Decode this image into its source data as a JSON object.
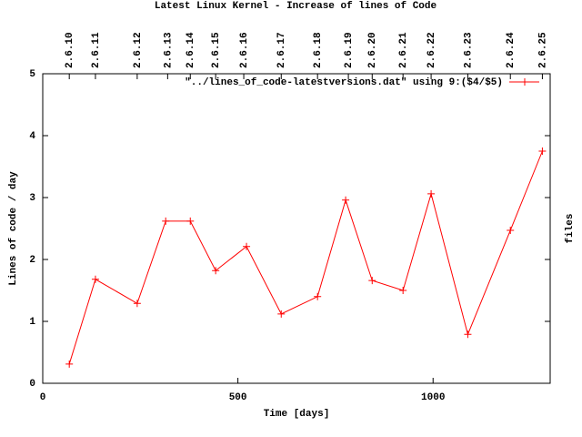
{
  "chart_data": {
    "type": "line",
    "title": "Latest Linux Kernel - Increase of lines of Code",
    "xlabel": "Time [days]",
    "ylabel": "Lines of code / day",
    "y2label": "files",
    "x": [
      68,
      135,
      242,
      315,
      378,
      443,
      522,
      611,
      704,
      776,
      844,
      923,
      995,
      1089,
      1198,
      1280
    ],
    "series": [
      {
        "name": "\"../lines_of_code-latestversions.dat\" using 9:($4/$5)",
        "color": "#ff0000",
        "values": [
          0.31,
          1.68,
          1.29,
          2.62,
          2.62,
          1.82,
          2.21,
          1.12,
          1.4,
          2.96,
          1.66,
          1.5,
          3.06,
          0.79,
          2.47,
          3.75
        ]
      }
    ],
    "xlim": [
      0,
      1300
    ],
    "ylim": [
      0,
      5
    ],
    "xticks": [
      0,
      500,
      1000
    ],
    "yticks": [
      0,
      1,
      2,
      3,
      4,
      5
    ],
    "x2ticks": [
      {
        "value": 68,
        "label": "2.6.10"
      },
      {
        "value": 135,
        "label": "2.6.11"
      },
      {
        "value": 242,
        "label": "2.6.12"
      },
      {
        "value": 320,
        "label": "2.6.13"
      },
      {
        "value": 378,
        "label": "2.6.14"
      },
      {
        "value": 443,
        "label": "2.6.15"
      },
      {
        "value": 515,
        "label": "2.6.16"
      },
      {
        "value": 611,
        "label": "2.6.17"
      },
      {
        "value": 704,
        "label": "2.6.18"
      },
      {
        "value": 783,
        "label": "2.6.19"
      },
      {
        "value": 844,
        "label": "2.6.20"
      },
      {
        "value": 923,
        "label": "2.6.21"
      },
      {
        "value": 995,
        "label": "2.6.22"
      },
      {
        "value": 1089,
        "label": "2.6.23"
      },
      {
        "value": 1198,
        "label": "2.6.24"
      },
      {
        "value": 1280,
        "label": "2.6.25"
      }
    ],
    "legend": "top-right"
  }
}
